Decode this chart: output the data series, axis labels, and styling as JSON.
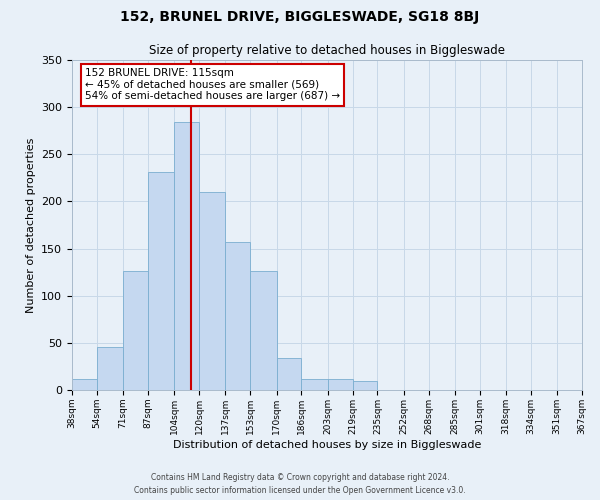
{
  "title": "152, BRUNEL DRIVE, BIGGLESWADE, SG18 8BJ",
  "subtitle": "Size of property relative to detached houses in Biggleswade",
  "xlabel": "Distribution of detached houses by size in Biggleswade",
  "ylabel": "Number of detached properties",
  "bin_labels": [
    "38sqm",
    "54sqm",
    "71sqm",
    "87sqm",
    "104sqm",
    "120sqm",
    "137sqm",
    "153sqm",
    "170sqm",
    "186sqm",
    "203sqm",
    "219sqm",
    "235sqm",
    "252sqm",
    "268sqm",
    "285sqm",
    "301sqm",
    "318sqm",
    "334sqm",
    "351sqm",
    "367sqm"
  ],
  "bin_edges": [
    38,
    54,
    71,
    87,
    104,
    120,
    137,
    153,
    170,
    186,
    203,
    219,
    235,
    252,
    268,
    285,
    301,
    318,
    334,
    351,
    367
  ],
  "bar_heights": [
    12,
    46,
    126,
    231,
    284,
    210,
    157,
    126,
    34,
    12,
    12,
    10,
    0,
    0,
    0,
    0,
    0,
    0,
    0,
    0
  ],
  "bar_color": "#c5d8f0",
  "bar_edge_color": "#7aaed0",
  "property_value": 115,
  "vline_color": "#cc0000",
  "annotation_text": "152 BRUNEL DRIVE: 115sqm\n← 45% of detached houses are smaller (569)\n54% of semi-detached houses are larger (687) →",
  "annotation_box_color": "#ffffff",
  "annotation_box_edge_color": "#cc0000",
  "ylim": [
    0,
    350
  ],
  "yticks": [
    0,
    50,
    100,
    150,
    200,
    250,
    300,
    350
  ],
  "footer_line1": "Contains HM Land Registry data © Crown copyright and database right 2024.",
  "footer_line2": "Contains public sector information licensed under the Open Government Licence v3.0.",
  "grid_color": "#c8d8e8",
  "background_color": "#e8f0f8"
}
